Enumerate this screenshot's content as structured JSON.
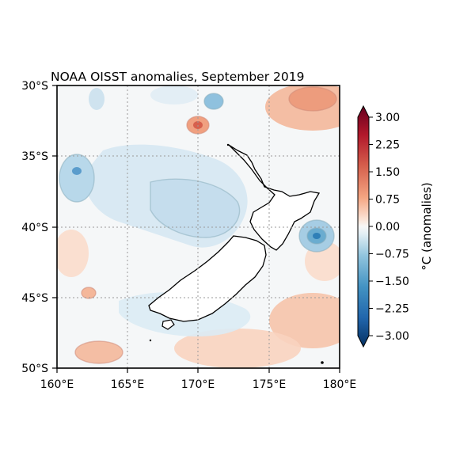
{
  "map": {
    "title": "NOAA OISST anomalies, September 2019",
    "lat_ticks": [
      "30°S",
      "35°S",
      "40°S",
      "45°S",
      "50°S"
    ],
    "lon_ticks": [
      "160°E",
      "165°E",
      "170°E",
      "175°E",
      "180°E"
    ],
    "extent": {
      "lon": [
        160,
        180
      ],
      "lat": [
        -50,
        -30
      ]
    },
    "grid": true
  },
  "colorbar": {
    "label": "°C (anomalies)",
    "range": [
      -3,
      3
    ],
    "ticks": [
      "3.00",
      "2.25",
      "1.50",
      "0.75",
      "0.00",
      "−0.75",
      "−1.50",
      "−2.25",
      "−3.00"
    ],
    "colors": [
      "#67001f",
      "#8e0b25",
      "#b2182b",
      "#c6413e",
      "#d6604d",
      "#e58368",
      "#f4a582",
      "#f8c3a5",
      "#fddbc7",
      "#faeae0",
      "#f7f7f7",
      "#e7f0f4",
      "#d1e5f0",
      "#b0d5e6",
      "#92c5de",
      "#6aacd0",
      "#4393c3",
      "#2f7fb7",
      "#2166ac",
      "#134b87",
      "#053061"
    ]
  }
}
